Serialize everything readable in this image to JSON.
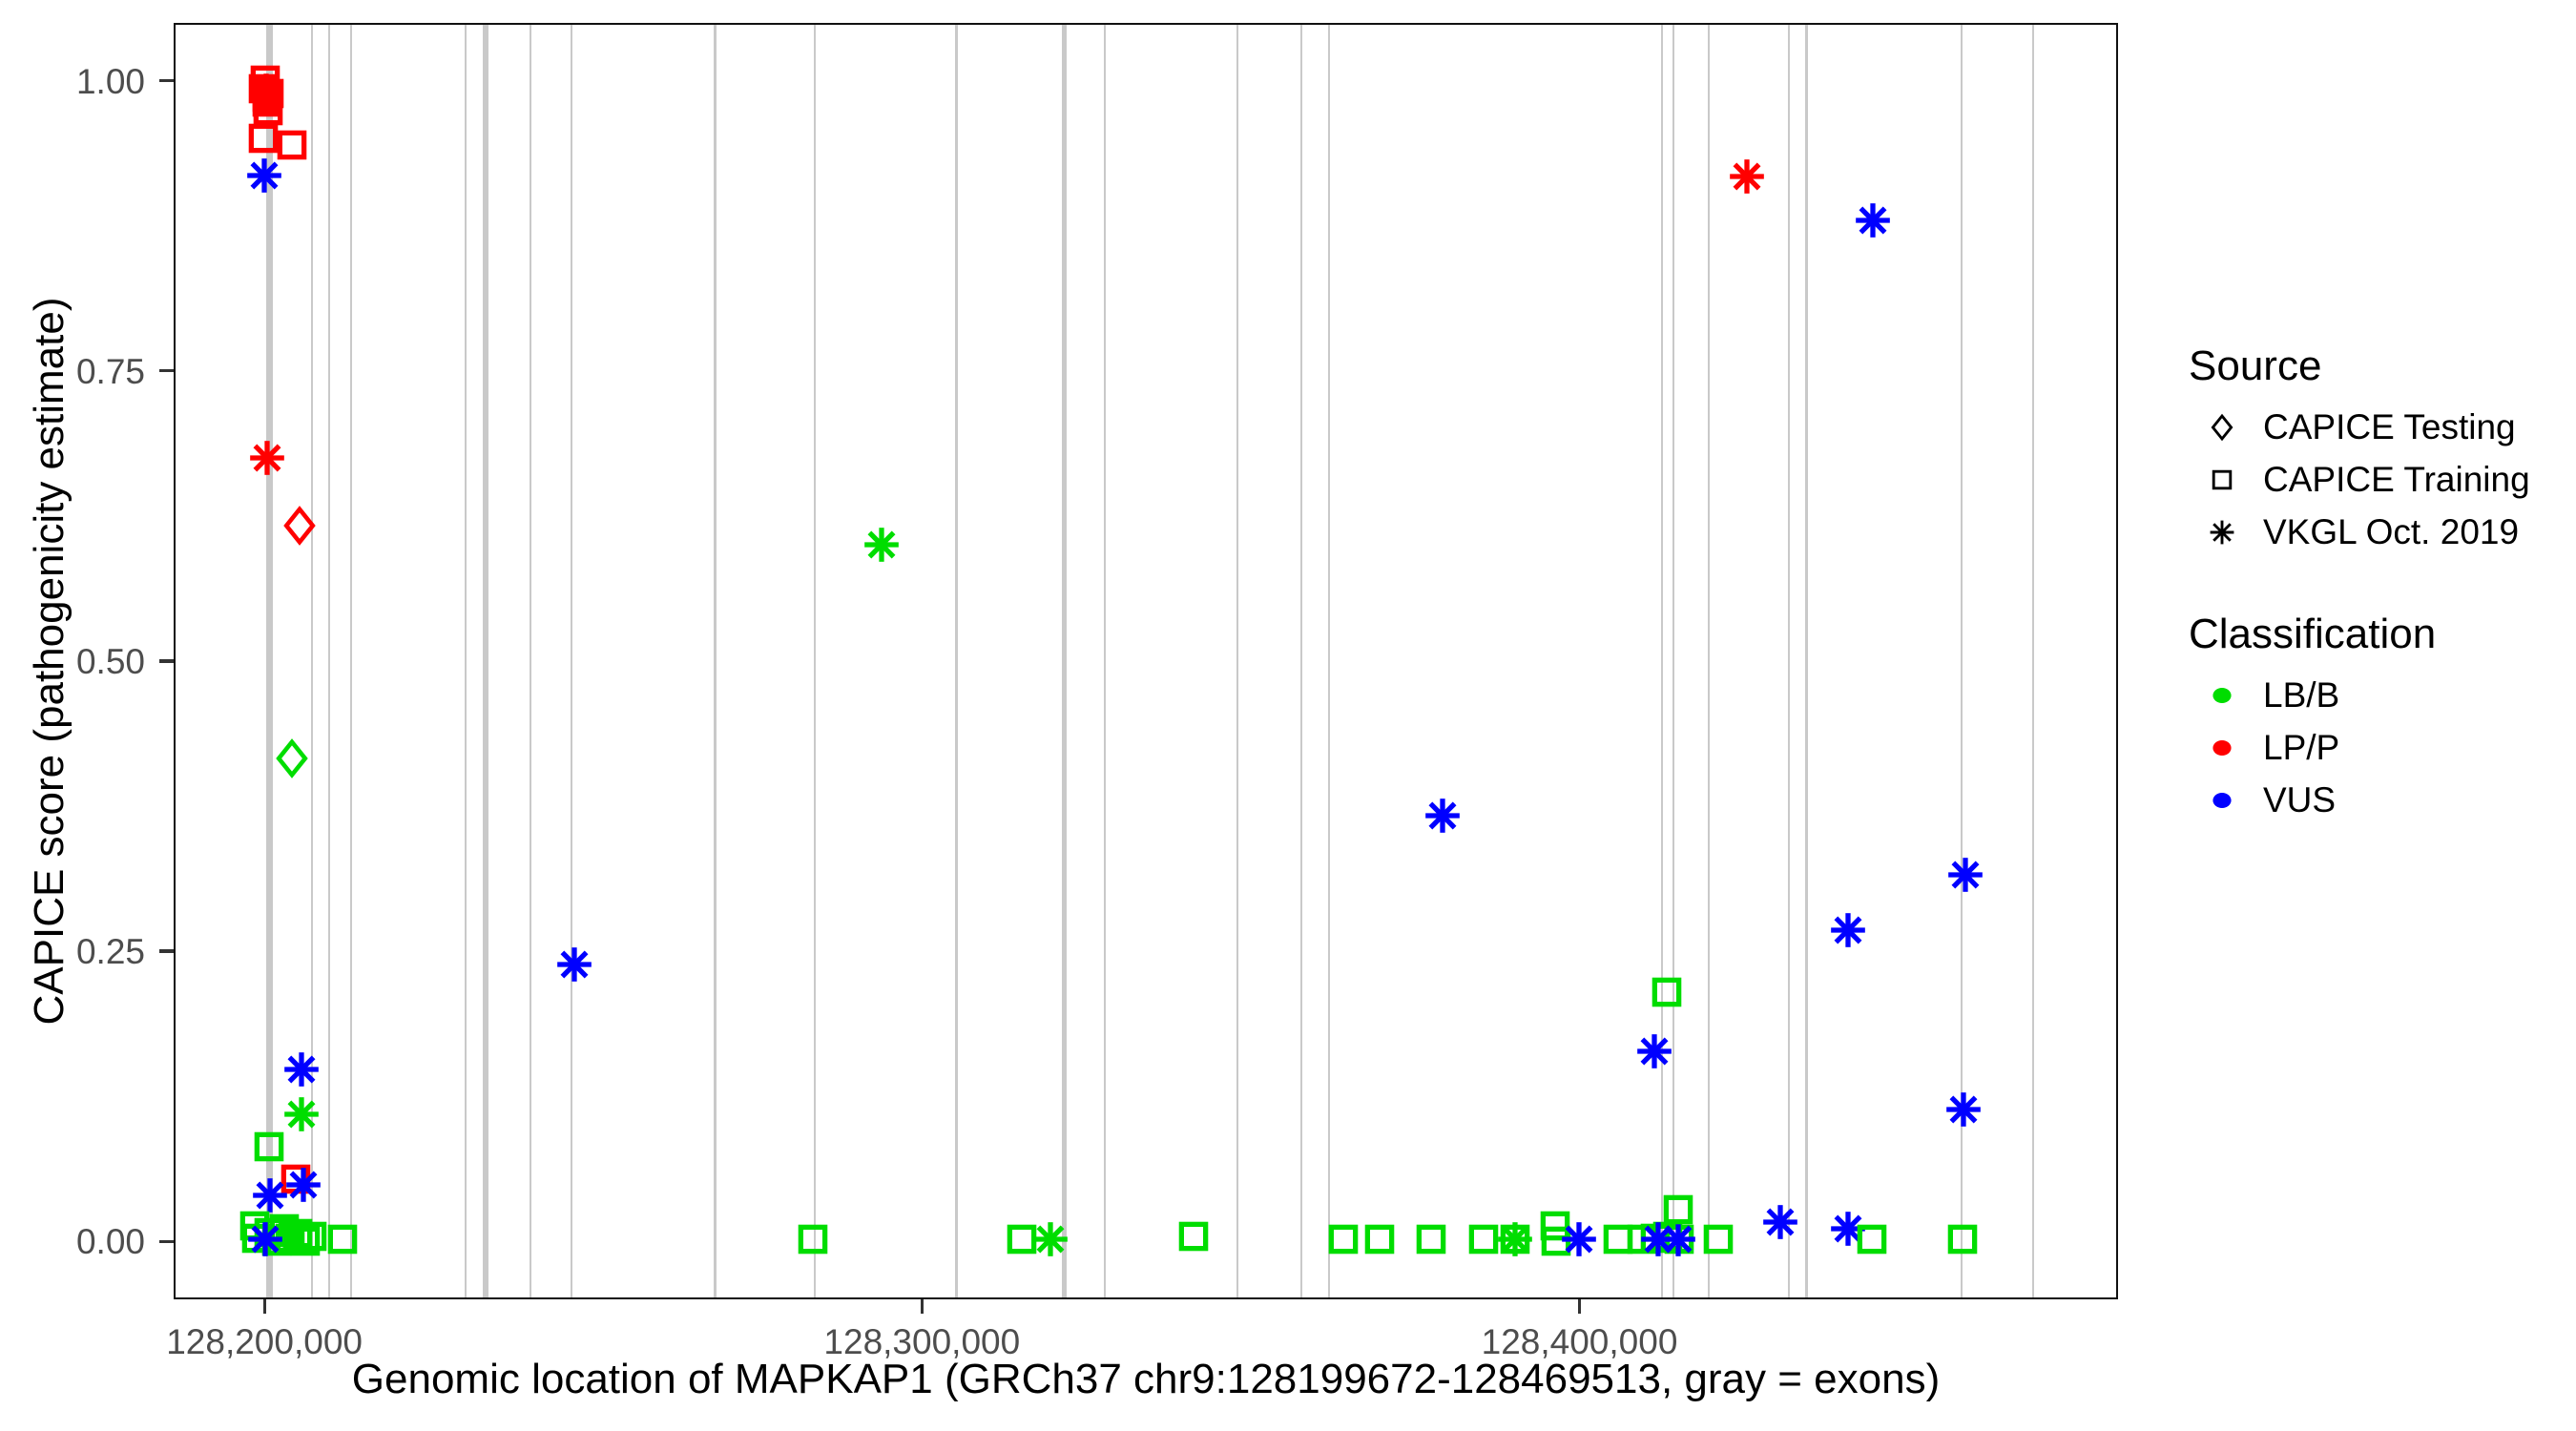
{
  "figure": {
    "x_axis_title": "Genomic location of MAPKAP1 (GRCh37 chr9:128199672-128469513, gray = exons)",
    "y_axis_title": "CAPICE score (pathogenicity estimate)"
  },
  "legend": {
    "source": {
      "title": "Source",
      "items": [
        {
          "label": "CAPICE Testing",
          "shape": "diamond"
        },
        {
          "label": "CAPICE Training",
          "shape": "square"
        },
        {
          "label": "VKGL Oct. 2019",
          "shape": "asterisk"
        }
      ]
    },
    "classification": {
      "title": "Classification",
      "items": [
        {
          "label": "LB/B",
          "color_key": "LB/B"
        },
        {
          "label": "LP/P",
          "color_key": "LP/P"
        },
        {
          "label": "VUS",
          "color_key": "VUS"
        }
      ]
    }
  },
  "chart_data": {
    "type": "scatter",
    "title": "",
    "xlabel": "Genomic location of MAPKAP1 (GRCh37 chr9:128199672-128469513, gray = exons)",
    "ylabel": "CAPICE score (pathogenicity estimate)",
    "grid": false,
    "legend_position": "right",
    "xlim": [
      128186200,
      128481900
    ],
    "ylim": [
      -0.05,
      1.05
    ],
    "x_ticks": [
      {
        "value": 128200000,
        "label": "128,200,000"
      },
      {
        "value": 128300000,
        "label": "128,300,000"
      },
      {
        "value": 128400000,
        "label": "128,400,000"
      }
    ],
    "y_ticks": [
      {
        "value": 1.0,
        "label": "1.00"
      },
      {
        "value": 0.75,
        "label": "0.75"
      },
      {
        "value": 0.5,
        "label": "0.50"
      },
      {
        "value": 0.25,
        "label": "0.25"
      },
      {
        "value": 0.0,
        "label": "0.00"
      }
    ],
    "colors": {
      "LB/B": "#00dd00",
      "LP/P": "#ff0000",
      "VUS": "#0000ff",
      "exon": "#c9c9c9",
      "legend_symbol": "#000000"
    },
    "exons_format": [
      "bp",
      "line_width_px"
    ],
    "exons": [
      [
        128200440,
        7
      ],
      [
        128206970,
        2
      ],
      [
        128209580,
        2
      ],
      [
        128212910,
        2
      ],
      [
        128230330,
        2
      ],
      [
        128233370,
        6
      ],
      [
        128240190,
        2
      ],
      [
        128246430,
        2
      ],
      [
        128268200,
        3
      ],
      [
        128283430,
        2
      ],
      [
        128304910,
        3
      ],
      [
        128321310,
        5
      ],
      [
        128327550,
        2
      ],
      [
        128347710,
        2
      ],
      [
        128357440,
        2
      ],
      [
        128361640,
        2
      ],
      [
        128412280,
        2
      ],
      [
        128414020,
        2
      ],
      [
        128419390,
        2
      ],
      [
        128431580,
        2
      ],
      [
        128434190,
        3
      ],
      [
        128457840,
        2
      ],
      [
        128468730,
        2
      ]
    ],
    "points_format": [
      "bp",
      "score",
      "marker",
      "classification",
      "source"
    ],
    "points": [
      [
        128200150,
        1.0,
        "square",
        "LP/P",
        "CAPICE Training"
      ],
      [
        128199860,
        0.993,
        "square",
        "LP/P",
        "CAPICE Training"
      ],
      [
        128200730,
        0.989,
        "square",
        "LP/P",
        "CAPICE Training"
      ],
      [
        128200440,
        0.985,
        "square",
        "LP/P",
        "CAPICE Training"
      ],
      [
        128200290,
        0.991,
        "asterisk",
        "LP/P",
        "VKGL Oct. 2019"
      ],
      [
        128200440,
        0.981,
        "square",
        "LP/P",
        "CAPICE Training"
      ],
      [
        128200580,
        0.974,
        "square",
        "LP/P",
        "CAPICE Training"
      ],
      [
        128199860,
        0.95,
        "square",
        "LP/P",
        "CAPICE Training"
      ],
      [
        128204350,
        0.944,
        "square",
        "LP/P",
        "CAPICE Training"
      ],
      [
        128200000,
        0.918,
        "asterisk",
        "VUS",
        "VKGL Oct. 2019"
      ],
      [
        128200440,
        0.675,
        "asterisk",
        "LP/P",
        "VKGL Oct. 2019"
      ],
      [
        128205510,
        0.616,
        "diamond",
        "LP/P",
        "CAPICE Testing"
      ],
      [
        128204350,
        0.416,
        "diamond",
        "LB/B",
        "CAPICE Testing"
      ],
      [
        128205800,
        0.148,
        "asterisk",
        "VUS",
        "VKGL Oct. 2019"
      ],
      [
        128205800,
        0.109,
        "asterisk",
        "LB/B",
        "VKGL Oct. 2019"
      ],
      [
        128200730,
        0.081,
        "square",
        "LB/B",
        "CAPICE Training"
      ],
      [
        128204790,
        0.053,
        "square",
        "LP/P",
        "CAPICE Training"
      ],
      [
        128206090,
        0.048,
        "asterisk",
        "VUS",
        "VKGL Oct. 2019"
      ],
      [
        128200870,
        0.039,
        "asterisk",
        "VUS",
        "VKGL Oct. 2019"
      ],
      [
        128198690,
        0.013,
        "square",
        "LB/B",
        "CAPICE Training"
      ],
      [
        128198980,
        0.002,
        "square",
        "LB/B",
        "CAPICE Training"
      ],
      [
        128200730,
        0.007,
        "square",
        "LB/B",
        "CAPICE Training"
      ],
      [
        128201890,
        0.0,
        "square",
        "LB/B",
        "CAPICE Training"
      ],
      [
        128203050,
        0.01,
        "square",
        "LB/B",
        "CAPICE Training"
      ],
      [
        128204060,
        0.002,
        "square",
        "LB/B",
        "CAPICE Training"
      ],
      [
        128205080,
        0.006,
        "square",
        "LB/B",
        "CAPICE Training"
      ],
      [
        128206240,
        0.0,
        "square",
        "LB/B",
        "CAPICE Training"
      ],
      [
        128207260,
        0.004,
        "square",
        "LB/B",
        "CAPICE Training"
      ],
      [
        128200150,
        0.001,
        "asterisk",
        "VUS",
        "VKGL Oct. 2019"
      ],
      [
        128212040,
        0.001,
        "square",
        "LB/B",
        "CAPICE Training"
      ],
      [
        128247160,
        0.238,
        "asterisk",
        "VUS",
        "VKGL Oct. 2019"
      ],
      [
        128293880,
        0.6,
        "asterisk",
        "LB/B",
        "VKGL Oct. 2019"
      ],
      [
        128283430,
        0.001,
        "square",
        "LB/B",
        "CAPICE Training"
      ],
      [
        128315210,
        0.001,
        "square",
        "LB/B",
        "CAPICE Training"
      ],
      [
        128319570,
        0.001,
        "asterisk",
        "LB/B",
        "VKGL Oct. 2019"
      ],
      [
        128341330,
        0.004,
        "square",
        "LB/B",
        "CAPICE Training"
      ],
      [
        128364110,
        0.001,
        "square",
        "LB/B",
        "CAPICE Training"
      ],
      [
        128369630,
        0.001,
        "square",
        "LB/B",
        "CAPICE Training"
      ],
      [
        128377460,
        0.001,
        "square",
        "LB/B",
        "CAPICE Training"
      ],
      [
        128379200,
        0.366,
        "asterisk",
        "VUS",
        "VKGL Oct. 2019"
      ],
      [
        128385440,
        0.001,
        "square",
        "LB/B",
        "CAPICE Training"
      ],
      [
        128390230,
        0.001,
        "square",
        "LB/B",
        "CAPICE Training"
      ],
      [
        128390230,
        0.001,
        "asterisk",
        "LB/B",
        "VKGL Oct. 2019"
      ],
      [
        128396320,
        0.013,
        "square",
        "LB/B",
        "CAPICE Training"
      ],
      [
        128396470,
        0.0,
        "square",
        "LB/B",
        "CAPICE Training"
      ],
      [
        128399950,
        0.001,
        "asterisk",
        "VUS",
        "VKGL Oct. 2019"
      ],
      [
        128405900,
        0.001,
        "square",
        "LB/B",
        "CAPICE Training"
      ],
      [
        128409530,
        0.001,
        "square",
        "LB/B",
        "CAPICE Training"
      ],
      [
        128411560,
        0.002,
        "square",
        "LB/B",
        "CAPICE Training"
      ],
      [
        128413440,
        0.004,
        "square",
        "LB/B",
        "CAPICE Training"
      ],
      [
        128415180,
        0.001,
        "square",
        "LB/B",
        "CAPICE Training"
      ],
      [
        128411990,
        0.001,
        "asterisk",
        "VUS",
        "VKGL Oct. 2019"
      ],
      [
        128415040,
        0.001,
        "asterisk",
        "VUS",
        "VKGL Oct. 2019"
      ],
      [
        128415040,
        0.027,
        "square",
        "LB/B",
        "CAPICE Training"
      ],
      [
        128413300,
        0.214,
        "square",
        "LB/B",
        "CAPICE Training"
      ],
      [
        128411410,
        0.163,
        "asterisk",
        "VUS",
        "VKGL Oct. 2019"
      ],
      [
        128421130,
        0.001,
        "square",
        "LB/B",
        "CAPICE Training"
      ],
      [
        128425490,
        0.917,
        "asterisk",
        "LP/P",
        "VKGL Oct. 2019"
      ],
      [
        128430570,
        0.016,
        "asterisk",
        "VUS",
        "VKGL Oct. 2019"
      ],
      [
        128440870,
        0.01,
        "asterisk",
        "VUS",
        "VKGL Oct. 2019"
      ],
      [
        128440870,
        0.268,
        "asterisk",
        "VUS",
        "VKGL Oct. 2019"
      ],
      [
        128444490,
        0.001,
        "square",
        "LB/B",
        "CAPICE Training"
      ],
      [
        128444640,
        0.879,
        "asterisk",
        "VUS",
        "VKGL Oct. 2019"
      ],
      [
        128458280,
        0.001,
        "square",
        "LB/B",
        "CAPICE Training"
      ],
      [
        128458710,
        0.315,
        "asterisk",
        "VUS",
        "VKGL Oct. 2019"
      ],
      [
        128458420,
        0.113,
        "asterisk",
        "VUS",
        "VKGL Oct. 2019"
      ]
    ]
  }
}
